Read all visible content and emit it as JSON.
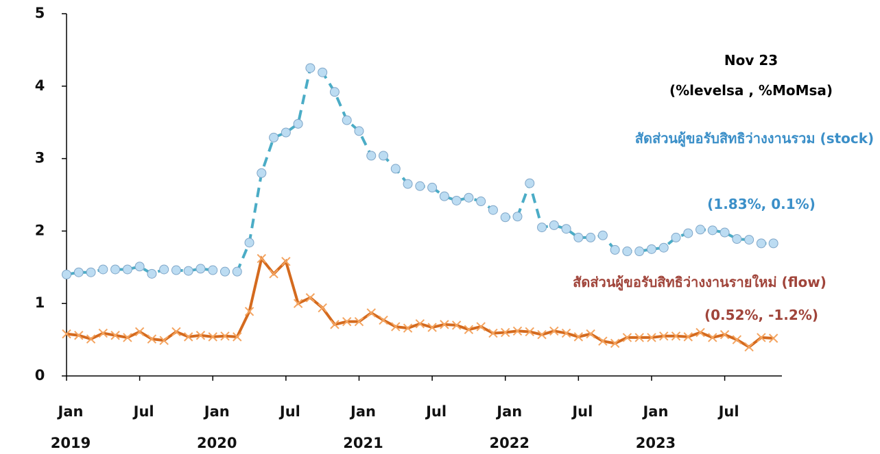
{
  "chart_data": {
    "type": "line",
    "title": "Nov 23",
    "subtitle": "(%levelsa , %MoMsa)",
    "categories": [
      "Jan",
      null,
      null,
      null,
      null,
      null,
      "Jul",
      null,
      null,
      null,
      null,
      null,
      "Jan",
      null,
      null,
      null,
      null,
      null,
      "Jul",
      null,
      null,
      null,
      null,
      null,
      "Jan",
      null,
      null,
      null,
      null,
      null,
      "Jul",
      null,
      null,
      null,
      null,
      null,
      "Jan",
      null,
      null,
      null,
      null,
      null,
      "Jul",
      null,
      null,
      null,
      null,
      null,
      "Jan",
      null,
      null,
      null,
      null,
      null,
      "Jul",
      null,
      null,
      null,
      null
    ],
    "years": [
      "2019",
      null,
      null,
      null,
      null,
      null,
      null,
      null,
      null,
      null,
      null,
      null,
      "2020",
      null,
      null,
      null,
      null,
      null,
      null,
      null,
      null,
      null,
      null,
      null,
      "2021",
      null,
      null,
      null,
      null,
      null,
      null,
      null,
      null,
      null,
      null,
      null,
      "2022",
      null,
      null,
      null,
      null,
      null,
      null,
      null,
      null,
      null,
      null,
      null,
      "2023",
      null,
      null,
      null,
      null,
      null,
      null,
      null,
      null,
      null,
      null
    ],
    "series": [
      {
        "name": "สัดส่วนผู้ขอรับสิทธิว่างงานรวม (stock)",
        "label": "(1.83%, 0.1%)",
        "color": "#4bacc6",
        "marker_color": "#bcdcf2",
        "marker": "circle",
        "dashed": true,
        "values": [
          1.4,
          1.43,
          1.43,
          1.47,
          1.47,
          1.47,
          1.51,
          1.41,
          1.47,
          1.46,
          1.45,
          1.48,
          1.46,
          1.44,
          1.44,
          1.84,
          2.8,
          3.29,
          3.36,
          3.48,
          4.25,
          4.19,
          3.92,
          3.53,
          3.38,
          3.04,
          3.04,
          2.86,
          2.65,
          2.62,
          2.6,
          2.48,
          2.42,
          2.46,
          2.41,
          2.29,
          2.19,
          2.2,
          2.66,
          2.05,
          2.08,
          2.03,
          1.91,
          1.91,
          1.94,
          1.74,
          1.72,
          1.72,
          1.75,
          1.77,
          1.91,
          1.97,
          2.02,
          2.01,
          1.98,
          1.89,
          1.88,
          1.83,
          1.83
        ]
      },
      {
        "name": "สัดส่วนผู้ขอรับสิทธิว่างงานรายใหม่ (flow)",
        "label": "(0.52%, -1.2%)",
        "color": "#d46a1e",
        "marker_color": "#f4a460",
        "marker": "x",
        "dashed": false,
        "values": [
          0.58,
          0.56,
          0.51,
          0.59,
          0.56,
          0.53,
          0.61,
          0.51,
          0.49,
          0.61,
          0.54,
          0.56,
          0.54,
          0.55,
          0.54,
          0.89,
          1.62,
          1.41,
          1.58,
          1.0,
          1.08,
          0.94,
          0.71,
          0.75,
          0.75,
          0.87,
          0.77,
          0.68,
          0.66,
          0.72,
          0.67,
          0.71,
          0.7,
          0.64,
          0.68,
          0.59,
          0.6,
          0.62,
          0.61,
          0.57,
          0.62,
          0.59,
          0.54,
          0.58,
          0.48,
          0.45,
          0.53,
          0.53,
          0.53,
          0.55,
          0.55,
          0.54,
          0.6,
          0.53,
          0.57,
          0.5,
          0.4,
          0.53,
          0.52
        ]
      }
    ],
    "label_colors": [
      "#3b8fc8",
      "#a0443a"
    ],
    "ylim": [
      0,
      5
    ],
    "yticks": [
      0,
      1,
      2,
      3,
      4,
      5
    ],
    "grid": false
  }
}
